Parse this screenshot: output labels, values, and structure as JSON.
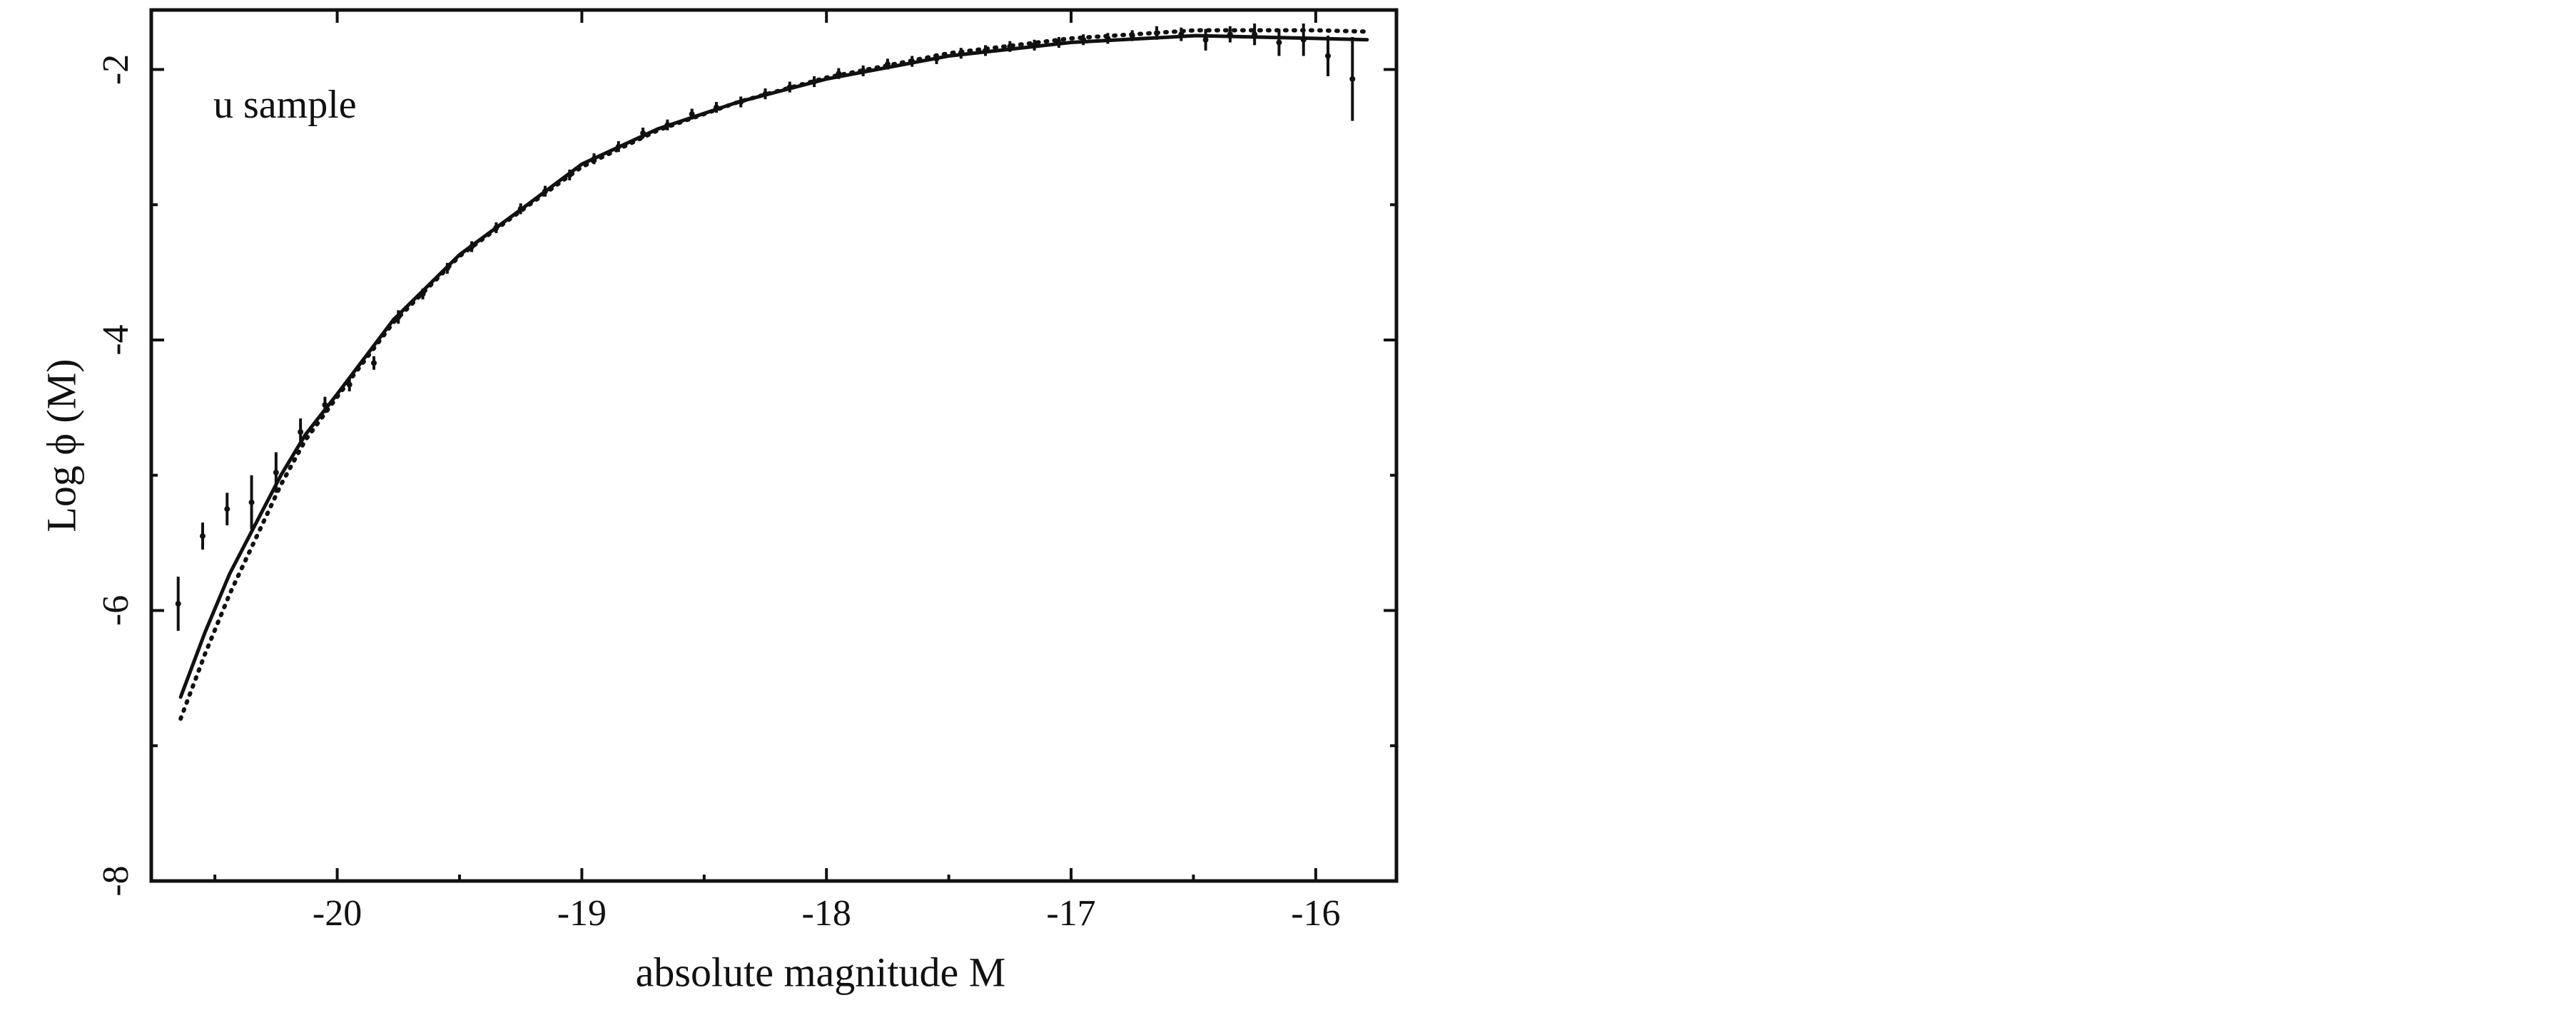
{
  "chart_data": {
    "type": "errorbar",
    "xlabel": "absolute magnitude M",
    "ylabel": "Log ϕ (M)",
    "annotation": "u sample",
    "xlim": [
      -20.76,
      -15.67
    ],
    "ylim": [
      -8,
      -1.56
    ],
    "xticks": [
      -20,
      -19,
      -18,
      -17,
      -16
    ],
    "yticks": [
      -8,
      -6,
      -4,
      -2
    ],
    "x_minor_ticks": [
      -20.5,
      -19.5,
      -18.5,
      -17.5,
      -16.5
    ],
    "y_minor_ticks": [
      -7,
      -5,
      -3
    ],
    "color": "#111111",
    "points": {
      "x": [
        -20.65,
        -20.55,
        -20.45,
        -20.35,
        -20.25,
        -20.15,
        -20.05,
        -19.95,
        -19.85,
        -19.75,
        -19.65,
        -19.55,
        -19.45,
        -19.35,
        -19.25,
        -19.15,
        -19.05,
        -18.95,
        -18.85,
        -18.75,
        -18.65,
        -18.55,
        -18.45,
        -18.35,
        -18.25,
        -18.15,
        -18.05,
        -17.95,
        -17.85,
        -17.75,
        -17.65,
        -17.55,
        -17.45,
        -17.35,
        -17.25,
        -17.15,
        -17.05,
        -16.95,
        -16.85,
        -16.75,
        -16.65,
        -16.55,
        -16.45,
        -16.35,
        -16.25,
        -16.15,
        -16.05,
        -15.95,
        -15.85
      ],
      "values": [
        -5.95,
        -5.45,
        -5.25,
        -5.2,
        -4.98,
        -4.68,
        -4.48,
        -4.33,
        -4.17,
        -3.83,
        -3.66,
        -3.47,
        -3.31,
        -3.17,
        -3.03,
        -2.9,
        -2.78,
        -2.66,
        -2.57,
        -2.47,
        -2.41,
        -2.33,
        -2.28,
        -2.24,
        -2.18,
        -2.13,
        -2.09,
        -2.03,
        -2.01,
        -1.96,
        -1.94,
        -1.92,
        -1.88,
        -1.86,
        -1.83,
        -1.82,
        -1.8,
        -1.78,
        -1.77,
        -1.75,
        -1.73,
        -1.74,
        -1.78,
        -1.74,
        -1.74,
        -1.8,
        -1.78,
        -1.9,
        -2.07
      ],
      "errors": [
        0.2,
        0.1,
        0.12,
        0.2,
        0.15,
        0.1,
        0.06,
        0.05,
        0.05,
        0.05,
        0.04,
        0.04,
        0.04,
        0.04,
        0.04,
        0.04,
        0.04,
        0.04,
        0.04,
        0.04,
        0.04,
        0.04,
        0.04,
        0.04,
        0.04,
        0.04,
        0.04,
        0.04,
        0.04,
        0.04,
        0.04,
        0.04,
        0.04,
        0.04,
        0.04,
        0.04,
        0.04,
        0.04,
        0.04,
        0.04,
        0.05,
        0.05,
        0.08,
        0.06,
        0.08,
        0.1,
        0.12,
        0.15,
        0.31
      ]
    },
    "fits": [
      {
        "style": "solid",
        "x": [
          -20.64,
          -20.54,
          -20.44,
          -20.23,
          -20.13,
          -20,
          -19.77,
          -19.5,
          -19.23,
          -19,
          -18.69,
          -18.36,
          -18,
          -17.5,
          -17,
          -16.49,
          -16,
          -15.79
        ],
        "values": [
          -6.64,
          -6.16,
          -5.73,
          -5.0,
          -4.7,
          -4.4,
          -3.85,
          -3.37,
          -3.01,
          -2.7,
          -2.44,
          -2.24,
          -2.07,
          -1.9,
          -1.8,
          -1.75,
          -1.77,
          -1.78
        ]
      },
      {
        "style": "dotted",
        "x": [
          -20.64,
          -20.54,
          -20.44,
          -20.23,
          -20.13,
          -20,
          -19.77,
          -19.5,
          -19.23,
          -19,
          -18.69,
          -18.36,
          -18,
          -17.5,
          -17,
          -16.49,
          -16,
          -15.79
        ],
        "values": [
          -6.8,
          -6.32,
          -5.88,
          -5.07,
          -4.74,
          -4.42,
          -3.87,
          -3.38,
          -3.02,
          -2.72,
          -2.45,
          -2.24,
          -2.06,
          -1.88,
          -1.77,
          -1.71,
          -1.71,
          -1.72
        ]
      }
    ]
  }
}
